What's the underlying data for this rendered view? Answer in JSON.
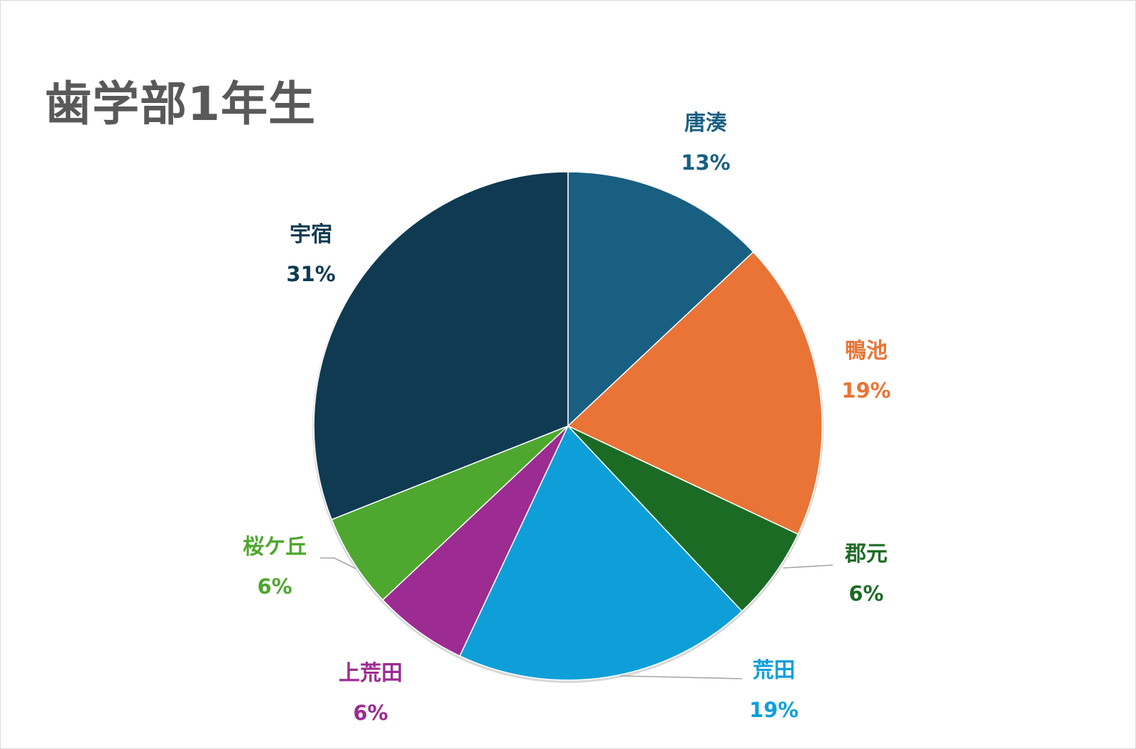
{
  "chart_data": {
    "type": "pie",
    "title": "歯学部1年生",
    "start_angle_deg": 0,
    "direction": "clockwise",
    "legend": "none",
    "slices": [
      {
        "label": "唐湊",
        "value": 13,
        "value_label": "13%",
        "color": "#185f82"
      },
      {
        "label": "鴨池",
        "value": 19,
        "value_label": "19%",
        "color": "#e97435"
      },
      {
        "label": "郡元",
        "value": 6,
        "value_label": "6%",
        "color": "#1c6b25"
      },
      {
        "label": "荒田",
        "value": 19,
        "value_label": "19%",
        "color": "#0f9fd8"
      },
      {
        "label": "上荒田",
        "value": 6,
        "value_label": "6%",
        "color": "#9c2b92"
      },
      {
        "label": "桜ケ丘",
        "value": 6,
        "value_label": "6%",
        "color": "#4ea72e"
      },
      {
        "label": "宇宿",
        "value": 31,
        "value_label": "31%",
        "color": "#0f3a51"
      }
    ]
  }
}
